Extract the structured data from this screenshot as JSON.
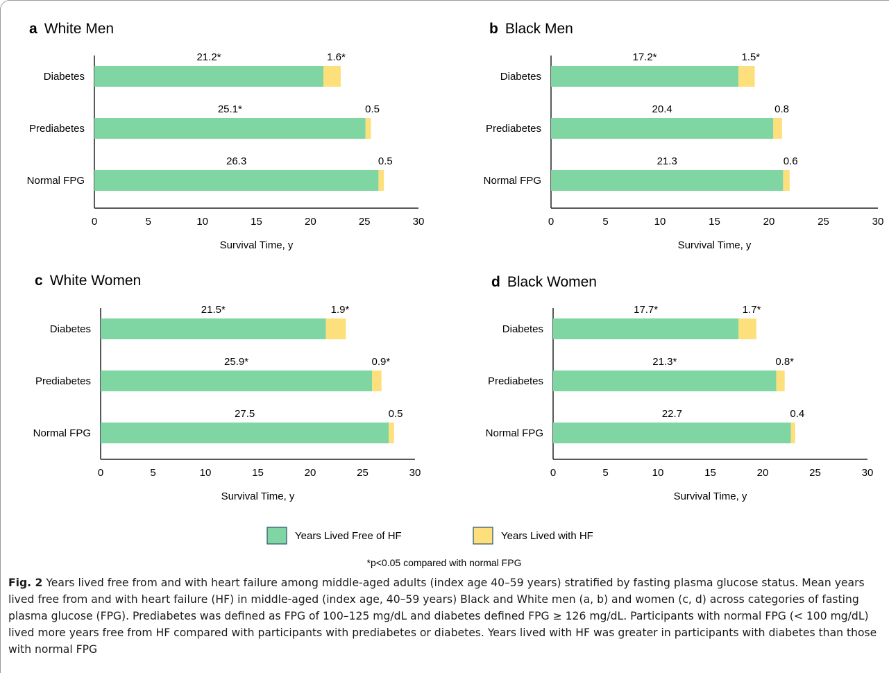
{
  "chart_data": [
    {
      "type": "bar",
      "stacked": true,
      "orientation": "horizontal",
      "panel_letter": "a",
      "title": "White Men",
      "categories": [
        "Diabetes",
        "Prediabetes",
        "Normal FPG"
      ],
      "series": [
        {
          "name": "Years Lived Free of HF",
          "values": [
            21.2,
            25.1,
            26.3
          ],
          "labels": [
            "21.2*",
            "25.1*",
            "26.3"
          ]
        },
        {
          "name": "Years Lived with HF",
          "values": [
            1.6,
            0.5,
            0.5
          ],
          "labels": [
            "1.6*",
            "0.5",
            "0.5"
          ]
        }
      ],
      "xlabel": "Survival Time, y",
      "xlim": [
        0,
        30
      ],
      "xticks": [
        0,
        5,
        10,
        15,
        20,
        25,
        30
      ]
    },
    {
      "type": "bar",
      "stacked": true,
      "orientation": "horizontal",
      "panel_letter": "b",
      "title": "Black Men",
      "categories": [
        "Diabetes",
        "Prediabetes",
        "Normal FPG"
      ],
      "series": [
        {
          "name": "Years Lived Free of HF",
          "values": [
            17.2,
            20.4,
            21.3
          ],
          "labels": [
            "17.2*",
            "20.4",
            "21.3"
          ]
        },
        {
          "name": "Years Lived with HF",
          "values": [
            1.5,
            0.8,
            0.6
          ],
          "labels": [
            "1.5*",
            "0.8",
            "0.6"
          ]
        }
      ],
      "xlabel": "Survival Time, y",
      "xlim": [
        0,
        30
      ],
      "xticks": [
        0,
        5,
        10,
        15,
        20,
        25,
        30
      ]
    },
    {
      "type": "bar",
      "stacked": true,
      "orientation": "horizontal",
      "panel_letter": "c",
      "title": "White Women",
      "categories": [
        "Diabetes",
        "Prediabetes",
        "Normal FPG"
      ],
      "series": [
        {
          "name": "Years Lived Free of HF",
          "values": [
            21.5,
            25.9,
            27.5
          ],
          "labels": [
            "21.5*",
            "25.9*",
            "27.5"
          ]
        },
        {
          "name": "Years Lived with HF",
          "values": [
            1.9,
            0.9,
            0.5
          ],
          "labels": [
            "1.9*",
            "0.9*",
            "0.5"
          ]
        }
      ],
      "xlabel": "Survival Time, y",
      "xlim": [
        0,
        30
      ],
      "xticks": [
        0,
        5,
        10,
        15,
        20,
        25,
        30
      ]
    },
    {
      "type": "bar",
      "stacked": true,
      "orientation": "horizontal",
      "panel_letter": "d",
      "title": "Black Women",
      "categories": [
        "Diabetes",
        "Prediabetes",
        "Normal FPG"
      ],
      "series": [
        {
          "name": "Years Lived Free of HF",
          "values": [
            17.7,
            21.3,
            22.7
          ],
          "labels": [
            "17.7*",
            "21.3*",
            "22.7"
          ]
        },
        {
          "name": "Years Lived with HF",
          "values": [
            1.7,
            0.8,
            0.4
          ],
          "labels": [
            "1.7*",
            "0.8*",
            "0.4"
          ]
        }
      ],
      "xlabel": "Survival Time, y",
      "xlim": [
        0,
        30
      ],
      "xticks": [
        0,
        5,
        10,
        15,
        20,
        25,
        30
      ]
    }
  ],
  "legend": {
    "items": [
      {
        "label": "Years Lived Free of HF",
        "color": "#7fd6a2"
      },
      {
        "label": "Years Lived with HF",
        "color": "#fde07c"
      }
    ],
    "placement": "bottom-center"
  },
  "footnote": "*p<0.05 compared with normal FPG",
  "colors": {
    "free_of_hf": "#7fd6a2",
    "with_hf": "#fde07c",
    "legend_border": "#2a4f6f",
    "axis": "#222222"
  },
  "caption": {
    "label": "Fig. 2",
    "text": "Years lived free from and with heart failure among middle-aged adults (index age 40–59 years) stratified by fasting plasma glucose status. Mean years lived free from and with heart failure (HF) in middle-aged (index age, 40–59 years) Black and White men (a, b) and women (c, d) across categories of fasting plasma glucose (FPG). Prediabetes was defined as FPG of 100–125 mg/dL and diabetes defined FPG ≥ 126 mg/dL. Participants with normal FPG (< 100 mg/dL) lived more years free from HF compared with participants with prediabetes or diabetes. Years lived with HF was greater in participants with diabetes than those with normal FPG"
  }
}
